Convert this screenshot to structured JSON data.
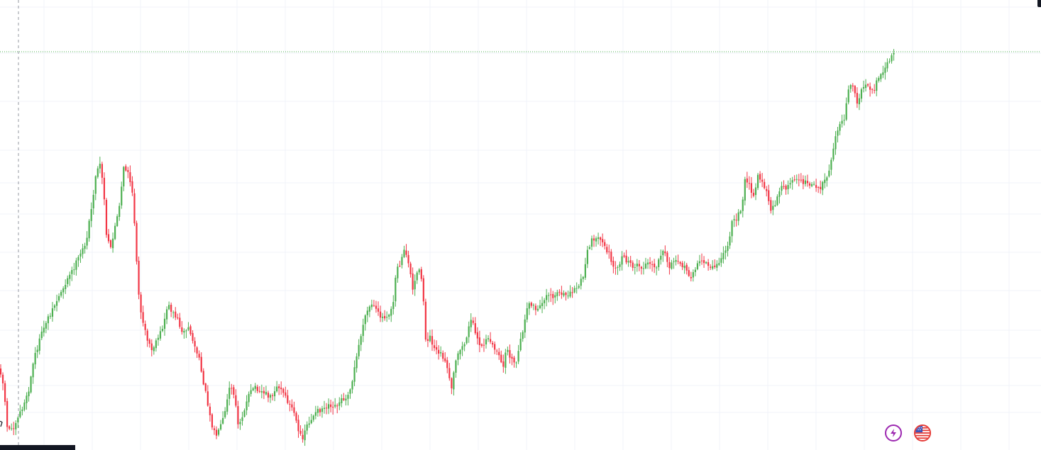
{
  "chart_data": {
    "type": "candlestick",
    "grid": true,
    "legend": "none",
    "up_color": "#4caf50",
    "down_color": "#f23645",
    "grid_color": "#f0f3fa",
    "price_line_color": "#4caf50",
    "crosshair_color": "#9598a1",
    "note": "",
    "anchors": [
      [
        0,
        520
      ],
      [
        5,
        545
      ],
      [
        10,
        600
      ],
      [
        14,
        607
      ],
      [
        20,
        600
      ],
      [
        26,
        585
      ],
      [
        32,
        575
      ],
      [
        40,
        555
      ],
      [
        48,
        505
      ],
      [
        56,
        480
      ],
      [
        64,
        455
      ],
      [
        72,
        440
      ],
      [
        82,
        420
      ],
      [
        92,
        400
      ],
      [
        104,
        378
      ],
      [
        114,
        358
      ],
      [
        122,
        338
      ],
      [
        128,
        300
      ],
      [
        134,
        255
      ],
      [
        140,
        228
      ],
      [
        146,
        265
      ],
      [
        150,
        335
      ],
      [
        156,
        350
      ],
      [
        162,
        320
      ],
      [
        168,
        295
      ],
      [
        174,
        238
      ],
      [
        180,
        240
      ],
      [
        186,
        270
      ],
      [
        190,
        320
      ],
      [
        194,
        395
      ],
      [
        198,
        440
      ],
      [
        202,
        460
      ],
      [
        208,
        480
      ],
      [
        214,
        495
      ],
      [
        222,
        480
      ],
      [
        230,
        460
      ],
      [
        236,
        430
      ],
      [
        242,
        438
      ],
      [
        250,
        450
      ],
      [
        258,
        470
      ],
      [
        266,
        462
      ],
      [
        272,
        482
      ],
      [
        280,
        505
      ],
      [
        288,
        545
      ],
      [
        294,
        575
      ],
      [
        300,
        605
      ],
      [
        306,
        615
      ],
      [
        312,
        600
      ],
      [
        318,
        580
      ],
      [
        324,
        542
      ],
      [
        330,
        560
      ],
      [
        336,
        600
      ],
      [
        342,
        585
      ],
      [
        350,
        560
      ],
      [
        358,
        545
      ],
      [
        366,
        550
      ],
      [
        374,
        555
      ],
      [
        382,
        560
      ],
      [
        390,
        545
      ],
      [
        398,
        552
      ],
      [
        406,
        568
      ],
      [
        414,
        580
      ],
      [
        420,
        610
      ],
      [
        426,
        618
      ],
      [
        432,
        600
      ],
      [
        440,
        590
      ],
      [
        448,
        580
      ],
      [
        456,
        575
      ],
      [
        464,
        570
      ],
      [
        472,
        572
      ],
      [
        480,
        565
      ],
      [
        488,
        560
      ],
      [
        496,
        540
      ],
      [
        500,
        518
      ],
      [
        506,
        485
      ],
      [
        512,
        458
      ],
      [
        518,
        438
      ],
      [
        524,
        430
      ],
      [
        532,
        442
      ],
      [
        540,
        448
      ],
      [
        548,
        442
      ],
      [
        554,
        428
      ],
      [
        558,
        380
      ],
      [
        564,
        372
      ],
      [
        570,
        352
      ],
      [
        576,
        370
      ],
      [
        582,
        410
      ],
      [
        588,
        380
      ],
      [
        592,
        385
      ],
      [
        596,
        410
      ],
      [
        600,
        480
      ],
      [
        606,
        475
      ],
      [
        612,
        490
      ],
      [
        618,
        495
      ],
      [
        624,
        502
      ],
      [
        630,
        520
      ],
      [
        636,
        550
      ],
      [
        642,
        512
      ],
      [
        648,
        492
      ],
      [
        654,
        488
      ],
      [
        660,
        465
      ],
      [
        666,
        448
      ],
      [
        672,
        478
      ],
      [
        678,
        492
      ],
      [
        684,
        482
      ],
      [
        690,
        478
      ],
      [
        696,
        490
      ],
      [
        702,
        500
      ],
      [
        708,
        520
      ],
      [
        714,
        492
      ],
      [
        720,
        505
      ],
      [
        726,
        518
      ],
      [
        732,
        490
      ],
      [
        738,
        460
      ],
      [
        744,
        432
      ],
      [
        750,
        428
      ],
      [
        756,
        440
      ],
      [
        762,
        432
      ],
      [
        768,
        418
      ],
      [
        774,
        412
      ],
      [
        780,
        420
      ],
      [
        786,
        410
      ],
      [
        792,
        418
      ],
      [
        798,
        415
      ],
      [
        804,
        412
      ],
      [
        810,
        408
      ],
      [
        816,
        402
      ],
      [
        822,
        390
      ],
      [
        828,
        355
      ],
      [
        834,
        340
      ],
      [
        840,
        333
      ],
      [
        846,
        342
      ],
      [
        852,
        348
      ],
      [
        858,
        358
      ],
      [
        864,
        372
      ],
      [
        870,
        380
      ],
      [
        876,
        362
      ],
      [
        882,
        368
      ],
      [
        888,
        372
      ],
      [
        894,
        376
      ],
      [
        900,
        375
      ],
      [
        906,
        380
      ],
      [
        912,
        370
      ],
      [
        918,
        375
      ],
      [
        924,
        380
      ],
      [
        930,
        365
      ],
      [
        936,
        355
      ],
      [
        942,
        378
      ],
      [
        948,
        372
      ],
      [
        954,
        362
      ],
      [
        960,
        372
      ],
      [
        966,
        380
      ],
      [
        972,
        392
      ],
      [
        978,
        382
      ],
      [
        984,
        372
      ],
      [
        990,
        368
      ],
      [
        996,
        372
      ],
      [
        1002,
        376
      ],
      [
        1008,
        378
      ],
      [
        1014,
        370
      ],
      [
        1020,
        355
      ],
      [
        1026,
        350
      ],
      [
        1032,
        305
      ],
      [
        1038,
        308
      ],
      [
        1044,
        298
      ],
      [
        1050,
        255
      ],
      [
        1056,
        262
      ],
      [
        1062,
        280
      ],
      [
        1068,
        248
      ],
      [
        1074,
        258
      ],
      [
        1080,
        268
      ],
      [
        1086,
        295
      ],
      [
        1092,
        288
      ],
      [
        1098,
        272
      ],
      [
        1104,
        262
      ],
      [
        1110,
        265
      ],
      [
        1116,
        255
      ],
      [
        1122,
        252
      ],
      [
        1128,
        258
      ],
      [
        1134,
        255
      ],
      [
        1140,
        260
      ],
      [
        1146,
        258
      ],
      [
        1152,
        268
      ],
      [
        1158,
        262
      ],
      [
        1164,
        255
      ],
      [
        1170,
        238
      ],
      [
        1174,
        210
      ],
      [
        1178,
        190
      ],
      [
        1184,
        178
      ],
      [
        1190,
        165
      ],
      [
        1196,
        125
      ],
      [
        1202,
        118
      ],
      [
        1208,
        148
      ],
      [
        1214,
        125
      ],
      [
        1220,
        118
      ],
      [
        1226,
        130
      ],
      [
        1232,
        128
      ],
      [
        1238,
        108
      ],
      [
        1244,
        100
      ],
      [
        1250,
        90
      ],
      [
        1256,
        80
      ],
      [
        1260,
        72
      ]
    ],
    "last_price_level_y": 73,
    "crosshair_x": 26
  },
  "icons": {
    "bolt": "lightning-bolt-icon",
    "flag": "us-flag-icon"
  }
}
